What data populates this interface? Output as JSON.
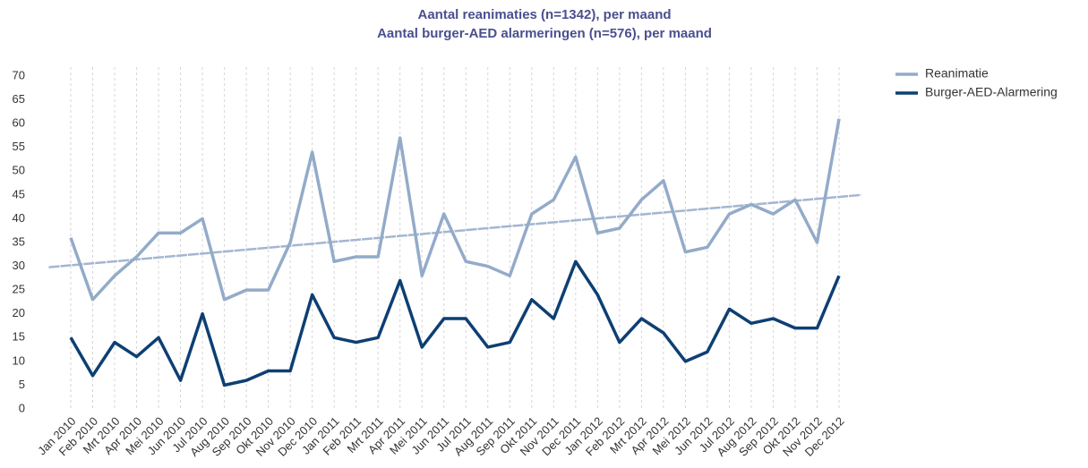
{
  "chart_data": {
    "type": "line",
    "title": "Aantal reanimaties (n=1342), per maand",
    "subtitle": "Aantal burger-AED alarmeringen (n=576), per maand",
    "categories": [
      "Jan 2010",
      "Feb 2010",
      "Mrt 2010",
      "Apr 2010",
      "Mei 2010",
      "Jun 2010",
      "Jul 2010",
      "Aug 2010",
      "Sep 2010",
      "Okt 2010",
      "Nov 2010",
      "Dec 2010",
      "Jan 2011",
      "Feb 2011",
      "Mrt 2011",
      "Apr 2011",
      "Mei 2011",
      "Jun 2011",
      "Jul 2011",
      "Aug 2011",
      "Sep 2011",
      "Okt 2011",
      "Nov 2011",
      "Dec 2011",
      "Jan 2012",
      "Feb 2012",
      "Mrt 2012",
      "Apr 2012",
      "Mei 2012",
      "Jun 2012",
      "Jul 2012",
      "Aug 2012",
      "Sep 2012",
      "Okt 2012",
      "Nov 2012",
      "Dec 2012"
    ],
    "series": [
      {
        "name": "Reanimatie",
        "color": "#93abc9",
        "values": [
          36,
          23,
          28,
          32,
          37,
          37,
          40,
          23,
          25,
          25,
          35,
          54,
          31,
          32,
          32,
          57,
          28,
          41,
          31,
          30,
          28,
          41,
          44,
          53,
          37,
          38,
          44,
          48,
          33,
          34,
          41,
          43,
          41,
          44,
          35,
          61
        ]
      },
      {
        "name": "Burger-AED-Alarmering",
        "color": "#0d3f73",
        "values": [
          15,
          7,
          14,
          11,
          15,
          6,
          20,
          5,
          6,
          8,
          8,
          24,
          15,
          14,
          15,
          27,
          13,
          19,
          19,
          13,
          14,
          23,
          19,
          31,
          24,
          14,
          19,
          16,
          10,
          12,
          21,
          18,
          19,
          17,
          17,
          28
        ]
      }
    ],
    "trend": {
      "color": "#a3b6d1",
      "x": [
        -1,
        36
      ],
      "values": [
        29.8,
        45
      ]
    },
    "ylim": [
      0,
      70
    ],
    "yticks": [
      0,
      5,
      10,
      15,
      20,
      25,
      30,
      35,
      40,
      45,
      50,
      55,
      60,
      65,
      70
    ],
    "grid": true
  }
}
